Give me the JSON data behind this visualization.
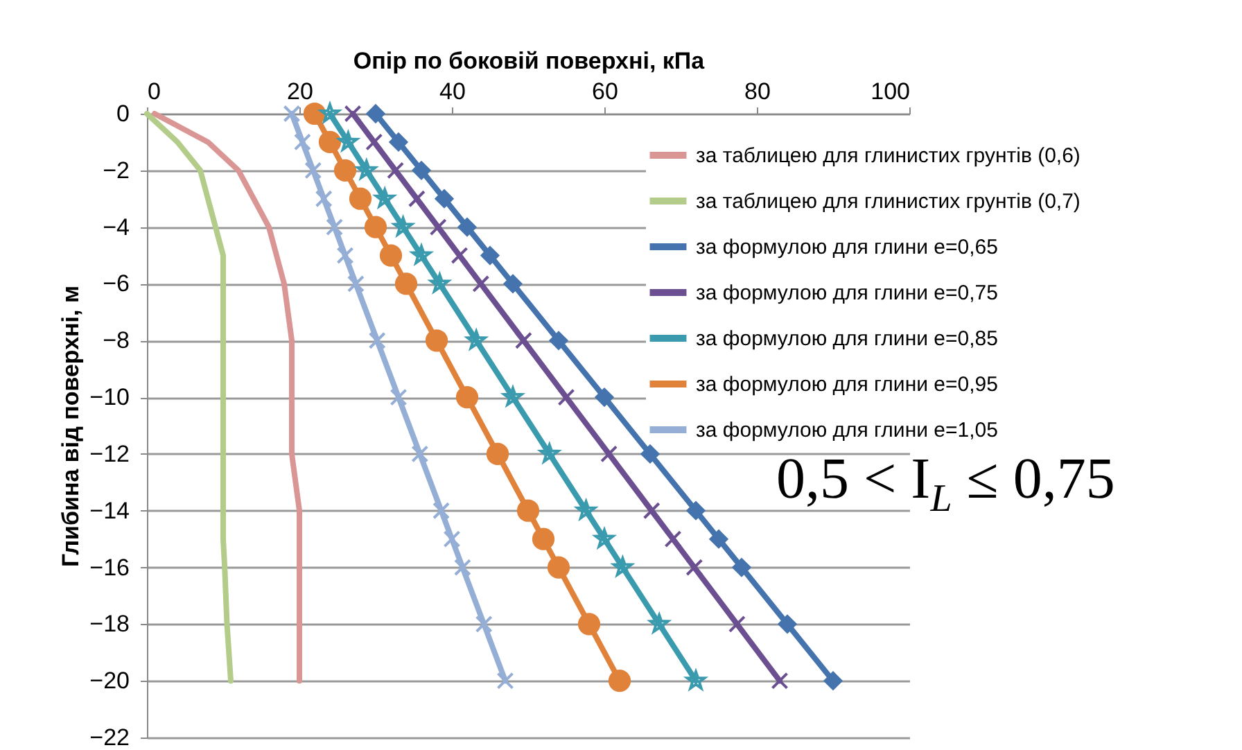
{
  "chart_data": {
    "type": "line",
    "xlabel": "Опір по боковій поверхні, кПа",
    "ylabel": "Глибина від поверхні, м",
    "xlim": [
      0,
      100
    ],
    "xticks": [
      0,
      20,
      40,
      60,
      80,
      100
    ],
    "ylim": [
      -22,
      0
    ],
    "yticks": [
      -22,
      -20,
      -18,
      -16,
      -14,
      -12,
      -10,
      -8,
      -6,
      -4,
      -2,
      0
    ],
    "grid": "y",
    "legend": "top right",
    "annotations": [
      "0,5 < I$_{L}$ ≤ 0,75"
    ],
    "series": [
      {
        "name": "за таблицею для глинистих грунтів (0,6)",
        "color": "#d99694",
        "marker": "none",
        "x": [
          1,
          8,
          12,
          14,
          16,
          17,
          18,
          19,
          19,
          19,
          20,
          20,
          20,
          20,
          20
        ],
        "values": [
          0,
          -1,
          -2,
          -3,
          -4,
          -5,
          -6,
          -8,
          -10,
          -12,
          -14,
          -15,
          -16,
          -18,
          -20
        ]
      },
      {
        "name": "за таблицею для глинистих грунтів (0,7)",
        "color": "#b3cc8a",
        "marker": "none",
        "x": [
          0,
          4,
          7,
          8,
          9,
          10,
          10,
          10,
          10,
          10,
          10,
          10,
          10.2,
          10.5,
          11
        ],
        "values": [
          0,
          -1,
          -2,
          -3,
          -4,
          -5,
          -6,
          -8,
          -10,
          -12,
          -14,
          -15,
          -16,
          -18,
          -20
        ]
      },
      {
        "name": "за формулою для глини е=0,65",
        "color": "#4473ad",
        "marker": "diamond",
        "x": [
          30,
          33,
          36,
          39,
          42,
          45,
          48,
          54,
          60,
          66,
          72,
          75,
          78,
          84,
          90
        ],
        "values": [
          0,
          -1,
          -2,
          -3,
          -4,
          -5,
          -6,
          -8,
          -10,
          -12,
          -14,
          -15,
          -16,
          -18,
          -20
        ]
      },
      {
        "name": "за формулою для глини е=0,75",
        "color": "#6b4f91",
        "marker": "cross",
        "x": [
          27,
          29.8,
          32.6,
          35.4,
          38.2,
          41,
          43.8,
          49.4,
          55,
          60.6,
          66.2,
          69,
          71.8,
          77.4,
          83
        ],
        "values": [
          0,
          -1,
          -2,
          -3,
          -4,
          -5,
          -6,
          -8,
          -10,
          -12,
          -14,
          -15,
          -16,
          -18,
          -20
        ]
      },
      {
        "name": "за формулою для глини е=0,85",
        "color": "#3a9aae",
        "marker": "star",
        "x": [
          24,
          26.4,
          28.8,
          31.2,
          33.6,
          36,
          38.4,
          43.2,
          48,
          52.8,
          57.6,
          60,
          62.4,
          67.2,
          72
        ],
        "values": [
          0,
          -1,
          -2,
          -3,
          -4,
          -5,
          -6,
          -8,
          -10,
          -12,
          -14,
          -15,
          -16,
          -18,
          -20
        ]
      },
      {
        "name": "за формулою для глини е=0,95",
        "color": "#e0823a",
        "marker": "circle",
        "x": [
          22,
          24,
          26,
          28,
          30,
          32,
          34,
          38,
          42,
          46,
          50,
          52,
          54,
          58,
          62
        ],
        "values": [
          0,
          -1,
          -2,
          -3,
          -4,
          -5,
          -6,
          -8,
          -10,
          -12,
          -14,
          -15,
          -16,
          -18,
          -20
        ]
      },
      {
        "name": "за формулою для глини е=1,05",
        "color": "#95aed6",
        "marker": "cross",
        "x": [
          19,
          20.4,
          21.8,
          23.2,
          24.6,
          26,
          27.4,
          30.2,
          33,
          35.8,
          38.6,
          40,
          41.4,
          44.2,
          47
        ],
        "values": [
          0,
          -1,
          -2,
          -3,
          -4,
          -5,
          -6,
          -8,
          -10,
          -12,
          -14,
          -15,
          -16,
          -18,
          -20
        ]
      }
    ]
  }
}
